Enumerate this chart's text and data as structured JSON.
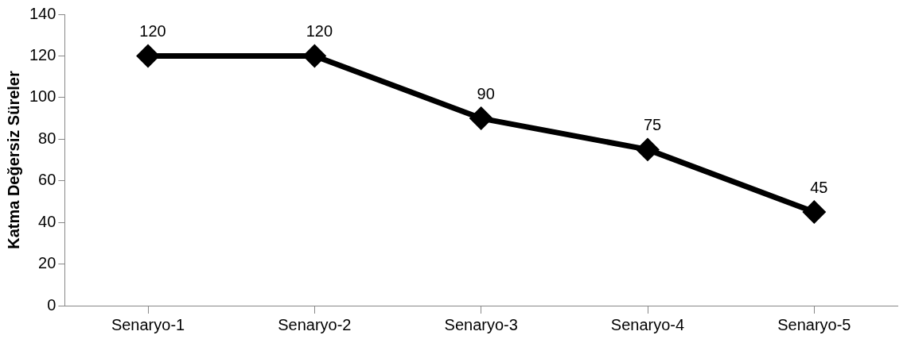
{
  "chart_data": {
    "type": "line",
    "ylabel": "Katma Değersiz Süreler",
    "categories": [
      "Senaryo-1",
      "Senaryo-2",
      "Senaryo-3",
      "Senaryo-4",
      "Senaryo-5"
    ],
    "series": [
      {
        "color": "#000000",
        "values": [
          120,
          120,
          90,
          75,
          45
        ]
      }
    ],
    "ylim": [
      0,
      140
    ],
    "yticks": [
      0,
      20,
      40,
      60,
      80,
      100,
      120,
      140
    ],
    "grid": false,
    "legend": false,
    "marker": "diamond",
    "line_style": "solid",
    "data_labels": true
  }
}
